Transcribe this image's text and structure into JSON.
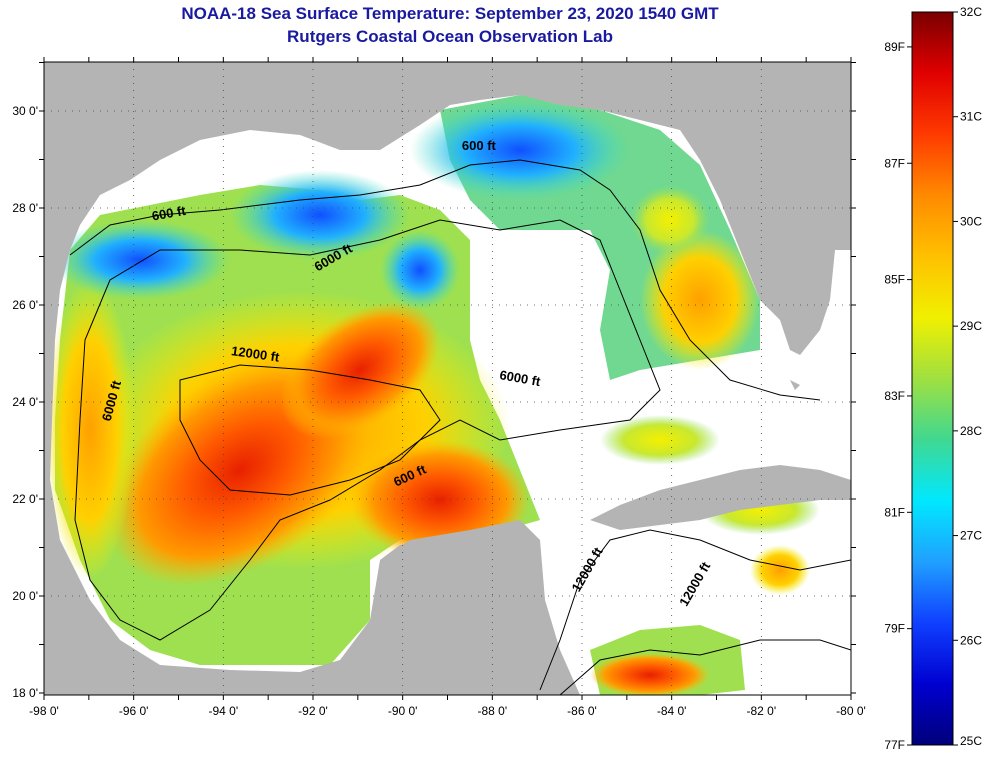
{
  "title_line1": "NOAA-18 Sea Surface Temperature:  September 23, 2020 1540 GMT",
  "title_line2": "Rutgers Coastal Ocean Observation Lab",
  "map": {
    "lon_min": -98,
    "lon_max": -80,
    "lat_min": 18,
    "lat_max": 31,
    "lon_ticks": [
      "-98 0'",
      "-96 0'",
      "-94 0'",
      "-92 0'",
      "-90 0'",
      "-88 0'",
      "-86 0'",
      "-84 0'",
      "-82 0'",
      "-80 0'"
    ],
    "lat_ticks": [
      "18 0'",
      "20 0'",
      "22 0'",
      "24 0'",
      "26 0'",
      "28 0'",
      "30 0'"
    ],
    "land_color": "#b4b4b4",
    "no_data_color": "#ffffff",
    "contour_labels": [
      {
        "text": "600 ft",
        "lon": -95.2,
        "lat": 27.8,
        "angle": -10
      },
      {
        "text": "600 ft",
        "lon": -88.3,
        "lat": 29.2,
        "angle": 0
      },
      {
        "text": "600 ft",
        "lon": -89.8,
        "lat": 22.4,
        "angle": -25
      },
      {
        "text": "6000 ft",
        "lon": -91.5,
        "lat": 26.9,
        "angle": -30
      },
      {
        "text": "6000 ft",
        "lon": -96.4,
        "lat": 24.0,
        "angle": -75
      },
      {
        "text": "6000 ft",
        "lon": -87.4,
        "lat": 24.4,
        "angle": 10
      },
      {
        "text": "12000 ft",
        "lon": -93.3,
        "lat": 24.9,
        "angle": 8
      },
      {
        "text": "12000 ft",
        "lon": -85.8,
        "lat": 20.5,
        "angle": -60
      },
      {
        "text": "12000 ft",
        "lon": -83.4,
        "lat": 20.2,
        "angle": -60
      }
    ]
  },
  "colorbar": {
    "celsius_labels": [
      "32C",
      "31C",
      "30C",
      "29C",
      "28C",
      "27C",
      "26C",
      "25C"
    ],
    "fahrenheit_labels": [
      "89F",
      "87F",
      "85F",
      "83F",
      "81F",
      "79F",
      "77F"
    ],
    "c_min": 25,
    "c_max": 32,
    "gradient_stops": [
      "#7a0000",
      "#e00000",
      "#ff3a00",
      "#ff8a00",
      "#ffc000",
      "#f0f000",
      "#a0e040",
      "#40d890",
      "#00e8ff",
      "#20a0ff",
      "#1040ff",
      "#0000d0",
      "#00007a"
    ]
  }
}
